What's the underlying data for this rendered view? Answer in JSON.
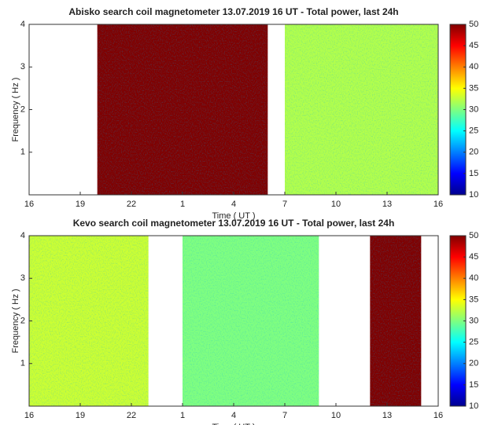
{
  "chart_data": [
    {
      "type": "spectrogram",
      "title": "Abisko search coil magnetometer 13.07.2019 16 UT - Total power, last 24h",
      "xlabel": "Time ( UT )",
      "ylabel": "Frequency ( Hz )",
      "xlim": [
        0,
        24
      ],
      "xticks": [
        {
          "value": 0,
          "label": "16"
        },
        {
          "value": 3,
          "label": "19"
        },
        {
          "value": 6,
          "label": "22"
        },
        {
          "value": 9,
          "label": "1"
        },
        {
          "value": 12,
          "label": "4"
        },
        {
          "value": 15,
          "label": "7"
        },
        {
          "value": 18,
          "label": "10"
        },
        {
          "value": 21,
          "label": "13"
        },
        {
          "value": 24,
          "label": "16"
        }
      ],
      "ylim": [
        0,
        4
      ],
      "yticks": [
        1,
        2,
        3,
        4
      ],
      "clim": [
        10,
        50
      ],
      "cticks": [
        10,
        15,
        20,
        25,
        30,
        35,
        40,
        45,
        50
      ],
      "segments": [
        {
          "start": 4,
          "end": 14,
          "level": 50
        },
        {
          "start": 15,
          "end": 24,
          "level": 32
        }
      ]
    },
    {
      "type": "spectrogram",
      "title": "Kevo search coil magnetometer 13.07.2019 16 UT - Total power, last 24h",
      "xlabel": "Time ( UT )",
      "ylabel": "Frequency ( Hz )",
      "xlim": [
        0,
        24
      ],
      "xticks": [
        {
          "value": 0,
          "label": "16"
        },
        {
          "value": 3,
          "label": "19"
        },
        {
          "value": 6,
          "label": "22"
        },
        {
          "value": 9,
          "label": "1"
        },
        {
          "value": 12,
          "label": "4"
        },
        {
          "value": 15,
          "label": "7"
        },
        {
          "value": 18,
          "label": "10"
        },
        {
          "value": 21,
          "label": "13"
        },
        {
          "value": 24,
          "label": "16"
        }
      ],
      "ylim": [
        0,
        4
      ],
      "yticks": [
        1,
        2,
        3,
        4
      ],
      "clim": [
        10,
        50
      ],
      "cticks": [
        10,
        15,
        20,
        25,
        30,
        35,
        40,
        45,
        50
      ],
      "segments": [
        {
          "start": 0,
          "end": 7,
          "level": 33
        },
        {
          "start": 9,
          "end": 17,
          "level": 30
        },
        {
          "start": 20,
          "end": 23,
          "level": 50
        }
      ]
    }
  ]
}
